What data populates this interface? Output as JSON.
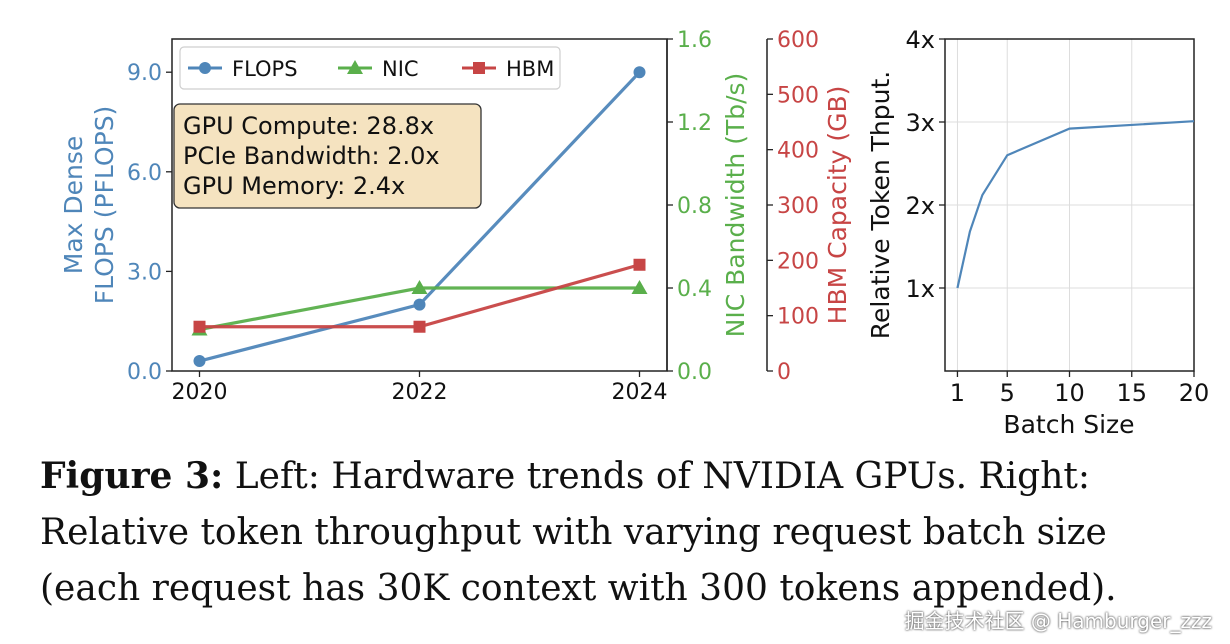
{
  "chart_data": [
    {
      "type": "line",
      "x": [
        2020,
        2022,
        2024
      ],
      "xticks": [
        "2020",
        "2022",
        "2024"
      ],
      "series": [
        {
          "name": "FLOPS",
          "axis": "left",
          "values": [
            0.3,
            2.0,
            9.0
          ],
          "color": "#4f86b9",
          "marker": "circle"
        },
        {
          "name": "NIC",
          "axis": "right1",
          "values": [
            0.2,
            0.4,
            0.4
          ],
          "color": "#5aaf4b",
          "marker": "triangle"
        },
        {
          "name": "HBM",
          "axis": "right2",
          "values": [
            80,
            80,
            192
          ],
          "color": "#c74545",
          "marker": "square"
        }
      ],
      "axes": {
        "left": {
          "label_lines": [
            "Max Dense",
            "FLOPS (PFLOPS)"
          ],
          "ylim": [
            0,
            10
          ],
          "ticks": [
            0,
            3,
            6,
            9
          ],
          "tick_labels": [
            "0.0",
            "3.0",
            "6.0",
            "9.0"
          ],
          "color": "#4f86b9"
        },
        "right1": {
          "label": "NIC Bandwidth (Tb/s)",
          "ylim": [
            0,
            1.6
          ],
          "ticks": [
            0,
            0.4,
            0.8,
            1.2,
            1.6
          ],
          "tick_labels": [
            "0.0",
            "0.4",
            "0.8",
            "1.2",
            "1.6"
          ],
          "color": "#5aaf4b"
        },
        "right2": {
          "label": "HBM Capacity (GB)",
          "ylim": [
            0,
            600
          ],
          "ticks": [
            0,
            100,
            200,
            300,
            400,
            500,
            600
          ],
          "tick_labels": [
            "0",
            "100",
            "200",
            "300",
            "400",
            "500",
            "600"
          ],
          "color": "#c74545"
        }
      },
      "xlim": [
        2019.75,
        2024.25
      ],
      "legend_position": "top-left",
      "annotation": [
        "GPU Compute: 28.8x",
        "PCIe Bandwidth: 2.0x",
        "GPU Memory: 2.4x"
      ],
      "annotation_bg": "#f5e3c0"
    },
    {
      "type": "line",
      "xlabel": "Batch Size",
      "ylabel": "Relative Token Thput.",
      "xlim": [
        0,
        20
      ],
      "ylim": [
        0,
        4
      ],
      "xticks": [
        1,
        5,
        10,
        15,
        20
      ],
      "xtick_labels": [
        "1",
        "5",
        "10",
        "15",
        "20"
      ],
      "yticks": [
        1,
        2,
        3,
        4
      ],
      "ytick_labels": [
        "1x",
        "2x",
        "3x",
        "4x"
      ],
      "grid": true,
      "series": [
        {
          "name": "Relative Token Thput.",
          "color": "#4f86b9",
          "x": [
            1,
            2,
            3,
            5,
            10,
            20
          ],
          "values": [
            1.0,
            1.68,
            2.12,
            2.6,
            2.92,
            3.01
          ]
        }
      ]
    }
  ],
  "caption": {
    "label": "Figure 3:",
    "text": " Left: Hardware trends of NVIDIA GPUs. Right: Relative token throughput with varying request batch size (each request has 30K context with 300 tokens appended)."
  },
  "watermark": "掘金技术社区 @ Hamburger_zzz"
}
